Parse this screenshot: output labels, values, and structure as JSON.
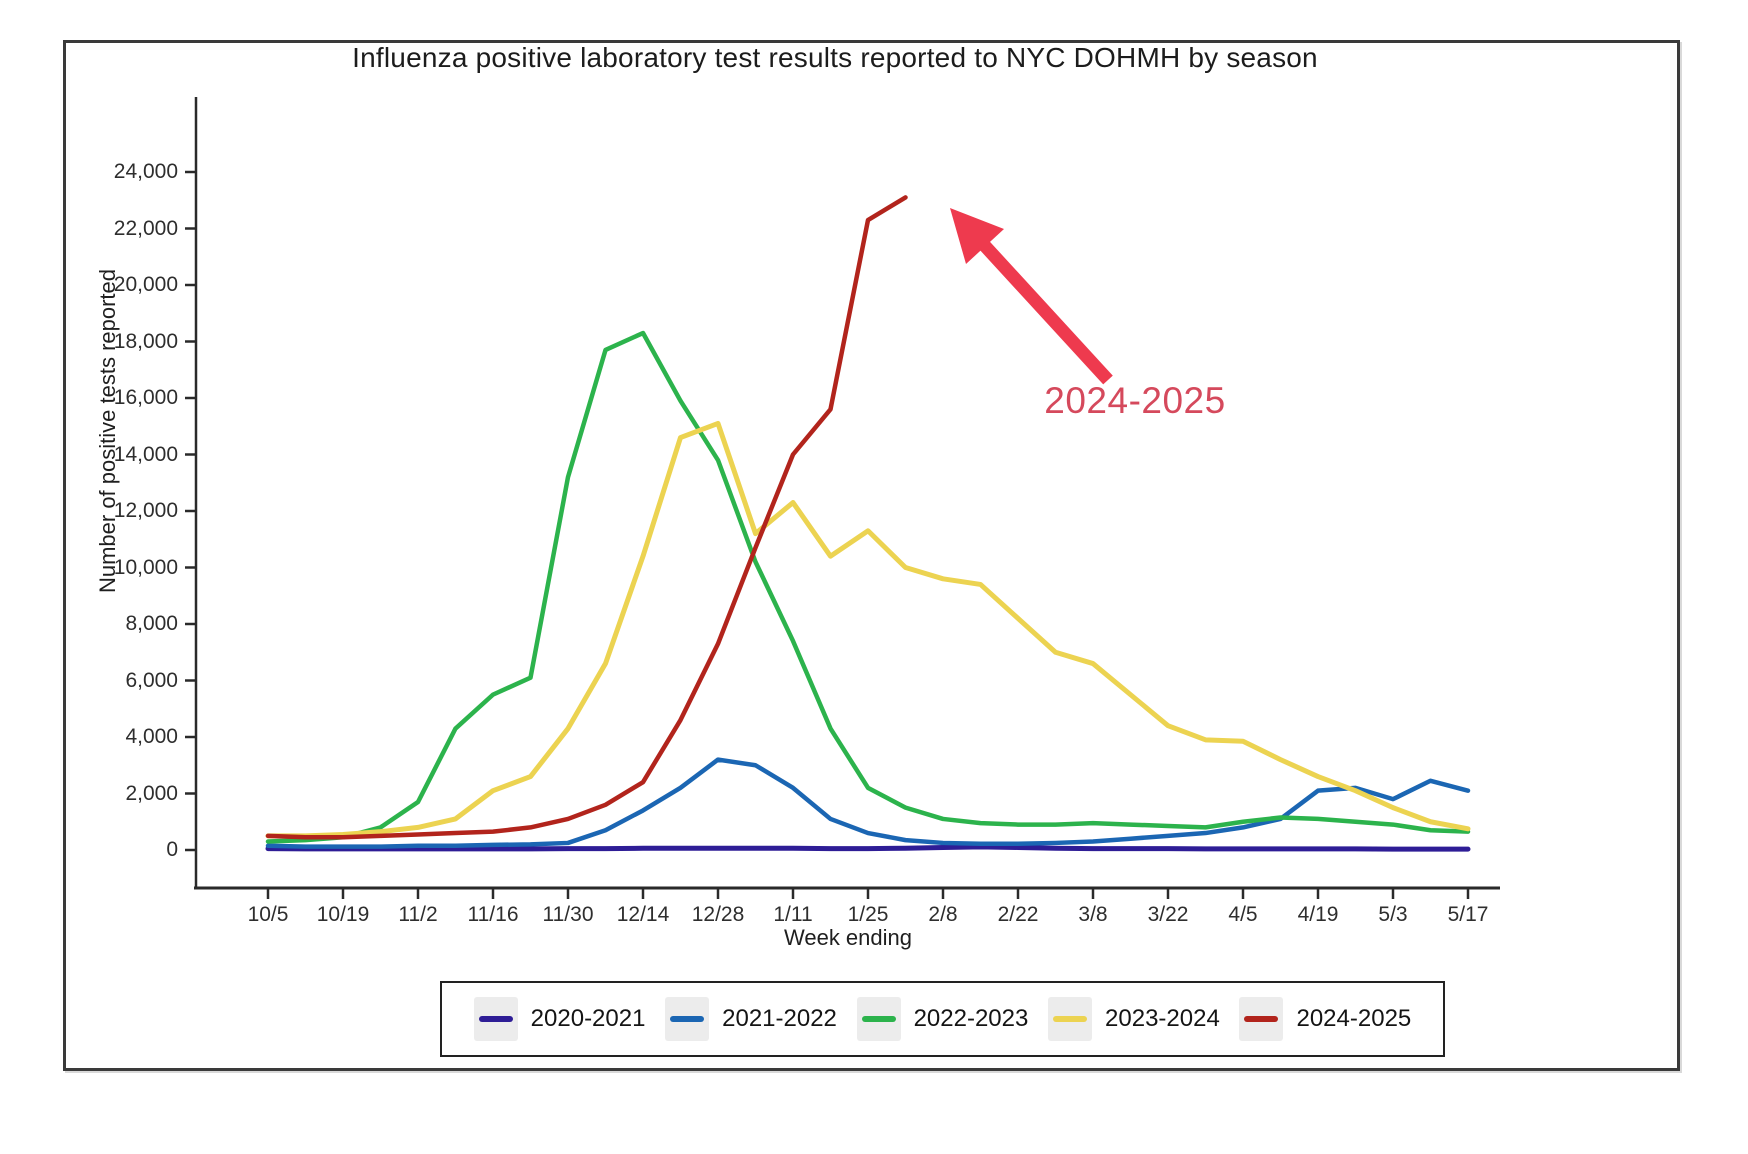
{
  "title": "Influenza positive laboratory test results reported to NYC DOHMH by season",
  "annotation": {
    "text": "2024-2025",
    "text_color": "#d5495c",
    "arrow_color": "#ee3a4e"
  },
  "colors": {
    "frame_border": "#3a3a3a",
    "axis": "#2a2a2a",
    "legend_swatch_bg": "#ececec"
  },
  "chart_data": {
    "type": "line",
    "title": "Influenza positive laboratory test results reported to NYC DOHMH by season",
    "xlabel": "Week ending",
    "ylabel": "Number of positive tests reported",
    "ylim": [
      0,
      24000
    ],
    "ytick_step": 2000,
    "grid": false,
    "legend_position": "bottom",
    "x": [
      "10/5",
      "10/12",
      "10/19",
      "10/26",
      "11/2",
      "11/9",
      "11/16",
      "11/23",
      "11/30",
      "12/7",
      "12/14",
      "12/21",
      "12/28",
      "1/4",
      "1/11",
      "1/18",
      "1/25",
      "2/1",
      "2/8",
      "2/15",
      "2/22",
      "3/1",
      "3/8",
      "3/15",
      "3/22",
      "3/29",
      "4/5",
      "4/12",
      "4/19",
      "4/26",
      "5/3",
      "5/10",
      "5/17"
    ],
    "x_tick_labels": [
      "10/5",
      "10/19",
      "11/2",
      "11/16",
      "11/30",
      "12/14",
      "12/28",
      "1/11",
      "1/25",
      "2/8",
      "2/22",
      "3/8",
      "3/22",
      "4/5",
      "4/19",
      "5/3",
      "5/17"
    ],
    "series": [
      {
        "name": "2020-2021",
        "color": "#2e1d96",
        "values": [
          50,
          40,
          40,
          40,
          40,
          40,
          40,
          40,
          50,
          50,
          60,
          60,
          60,
          60,
          60,
          50,
          50,
          60,
          90,
          110,
          90,
          60,
          50,
          50,
          50,
          40,
          40,
          40,
          40,
          40,
          30,
          30,
          30
        ]
      },
      {
        "name": "2021-2022",
        "color": "#1b66b3",
        "values": [
          150,
          120,
          120,
          120,
          150,
          150,
          180,
          200,
          250,
          700,
          1400,
          2200,
          3200,
          3000,
          2200,
          1100,
          600,
          350,
          250,
          220,
          220,
          250,
          300,
          400,
          500,
          600,
          800,
          1100,
          2100,
          2200,
          1800,
          2450,
          2100
        ]
      },
      {
        "name": "2022-2023",
        "color": "#2cb34c",
        "values": [
          300,
          350,
          450,
          800,
          1700,
          4300,
          5500,
          6100,
          13200,
          17700,
          18300,
          15900,
          13800,
          10200,
          7400,
          4300,
          2200,
          1500,
          1100,
          950,
          900,
          900,
          950,
          900,
          850,
          800,
          1000,
          1150,
          1100,
          1000,
          900,
          700,
          650
        ]
      },
      {
        "name": "2023-2024",
        "color": "#ecd351",
        "values": [
          500,
          500,
          550,
          650,
          800,
          1100,
          2100,
          2600,
          4300,
          6600,
          10400,
          14600,
          15100,
          11200,
          12300,
          10400,
          11300,
          10000,
          9600,
          9400,
          8200,
          7000,
          6600,
          5500,
          4400,
          3900,
          3850,
          3200,
          2600,
          2100,
          1500,
          1000,
          750
        ]
      },
      {
        "name": "2024-2025",
        "color": "#b2241c",
        "values": [
          500,
          450,
          450,
          500,
          550,
          600,
          650,
          800,
          1100,
          1600,
          2400,
          4600,
          7300,
          10700,
          14000,
          15600,
          22300,
          23100
        ]
      }
    ]
  }
}
